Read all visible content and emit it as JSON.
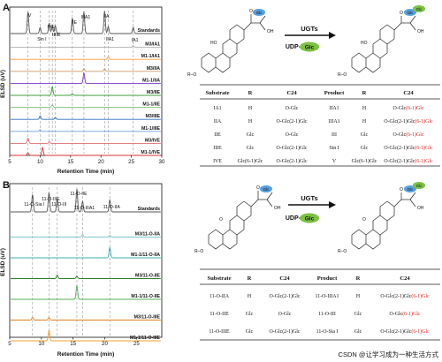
{
  "panelA": {
    "label": "A",
    "ylabel": "ELSD (uV)",
    "xlabel": "Retention Time (min)",
    "xticks": [
      "5",
      "10",
      "15",
      "20",
      "25",
      "30"
    ],
    "peak_labels": [
      "V",
      "Sin I",
      "IVE",
      "III",
      "IIIE",
      "IIE",
      "IIIA1",
      "IIA",
      "IIA1",
      "IA1"
    ],
    "tracks": [
      {
        "label": "Standards",
        "color": "#555555"
      },
      {
        "label": "M3/IA1",
        "color": "#b0b0b0"
      },
      {
        "label": "M1-1/IA1",
        "color": "#ff9933"
      },
      {
        "label": "M3/IIA",
        "color": "#cc9966"
      },
      {
        "label": "M1-1/IIA",
        "color": "#7a3cc8"
      },
      {
        "label": "M3/IIE",
        "color": "#3ca03c"
      },
      {
        "label": "M1-1/IIE",
        "color": "#7fbf7f"
      },
      {
        "label": "M3/IIIE",
        "color": "#2f6fc0"
      },
      {
        "label": "M1-1/IIIE",
        "color": "#6fa0e0"
      },
      {
        "label": "M3/IVE",
        "color": "#e07070"
      },
      {
        "label": "M1-1/IVE",
        "color": "#d83030"
      }
    ],
    "scheme": {
      "arrow_top": "UGTs",
      "arrow_bottom_prefix": "UDP-",
      "glc": "Glc"
    },
    "table": {
      "headers": [
        "Substrate",
        "R",
        "C24",
        "Product",
        "R",
        "C24"
      ],
      "rows": [
        {
          "sub": "IA1",
          "r1": "H",
          "c1": "O-Glc",
          "prod": "IIA1",
          "r2": "H",
          "c2a": "O-Glc",
          "c2b": "(6-1)Glc"
        },
        {
          "sub": "IIA",
          "r1": "H",
          "c1": "O-Glc(2-1)Glc",
          "prod": "IIIA1",
          "r2": "H",
          "c2a": "O-Glc(2-1)Glc",
          "c2b": "(6-1)Glc"
        },
        {
          "sub": "IIE",
          "r1": "Glc",
          "c1": "O-Glc",
          "prod": "III",
          "r2": "Glc",
          "c2a": "O-Glc",
          "c2b": "(6-1)Glc"
        },
        {
          "sub": "IIIE",
          "r1": "Glc",
          "c1": "O-Glc(2-1)Glc",
          "prod": "Sin I",
          "r2": "Glc",
          "c2a": "O-Glc(2-1)Glc",
          "c2b": "(6-1)Glc"
        },
        {
          "sub": "IVE",
          "r1": "Glc(6-1)Glc",
          "c1": "O-Glc(2-1)Glc",
          "prod": "V",
          "r2": "Glc(6-1)Glc",
          "c2a": "O-Glc(2-1)Glc",
          "c2b": "(6-1)Glc"
        }
      ]
    }
  },
  "panelB": {
    "label": "B",
    "ylabel": "ELSD (uV)",
    "xlabel": "Retention Time (min)",
    "xticks": [
      "5",
      "10",
      "15",
      "20",
      "25"
    ],
    "peak_labels": [
      "11-O-Sia I",
      "11-O-IIIE",
      "11-O-III",
      "11-O-IIE",
      "11-O-IIIA1",
      "11-O-IIA"
    ],
    "tracks": [
      {
        "label": "Standards",
        "color": "#555555"
      },
      {
        "label": "M3/11-O-IIA",
        "color": "#7fc7c7"
      },
      {
        "label": "M1-1/11-O-IIA",
        "color": "#3cb0b0"
      },
      {
        "label": "M3/11-O-IIE",
        "color": "#2f7f2f"
      },
      {
        "label": "M1-1/11-O-IIE",
        "color": "#55b055"
      },
      {
        "label": "M3/11-O-IIIE",
        "color": "#e08020"
      },
      {
        "label": "M1-1/11-O-IIIE",
        "color": "#f0a030"
      }
    ],
    "scheme": {
      "arrow_top": "UGTs",
      "arrow_bottom_prefix": "UDP-",
      "glc": "Glc"
    },
    "table": {
      "headers": [
        "Substrate",
        "R",
        "C24",
        "Product",
        "R",
        "C24"
      ],
      "rows": [
        {
          "sub": "11-O-IIA",
          "r1": "H",
          "c1": "O-Glc(2-1)Glc",
          "prod": "11-O-IIIA1",
          "r2": "H",
          "c2a": "O-Glc(2-1)Glc",
          "c2b": "(6-1)Glc"
        },
        {
          "sub": "11-O-IIE",
          "r1": "Glc",
          "c1": "O-Glc",
          "prod": "11-O-III",
          "r2": "Glc",
          "c2a": "O-Glc",
          "c2b": "(6-1)Glc"
        },
        {
          "sub": "11-O-IIIE",
          "r1": "Glc",
          "c1": "O-Glc(2-1)Glc",
          "prod": "11-O-Sia I",
          "r2": "Glc",
          "c2a": "O-Glc(2-1)Glc",
          "c2b": "(6-1)Glc"
        }
      ]
    }
  },
  "watermark": "CSDN @让学习成为一种生活方式",
  "colors": {
    "red": "#e02020",
    "glc_blue": "#3a8fd8",
    "glc_green": "#7cc142"
  }
}
